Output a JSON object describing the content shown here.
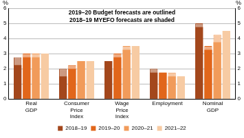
{
  "chart_data": {
    "type": "bar",
    "annotations": [
      "2019–20 Budget forecasts are outlined",
      "2018–19 MYEFO forecasts are shaded"
    ],
    "y_label": "%",
    "categories": [
      [
        "Real",
        "GDP"
      ],
      [
        "Consumer",
        "Price",
        "Index"
      ],
      [
        "Wage",
        "Price",
        "Index"
      ],
      [
        "Employment"
      ],
      [
        "Nominal",
        "GDP"
      ]
    ],
    "series": [
      {
        "name": "2018–19",
        "color": "#a3471c",
        "values": [
          2.25,
          1.5,
          2.5,
          1.75,
          4.75
        ],
        "myefo": [
          2.75,
          2.0,
          2.5,
          2.0,
          5.0
        ]
      },
      {
        "name": "2019–20",
        "color": "#e1661b",
        "values": [
          2.75,
          2.0,
          2.75,
          1.75,
          3.25
        ],
        "myefo": [
          3.0,
          2.25,
          3.0,
          1.75,
          3.5
        ]
      },
      {
        "name": "2020–21",
        "color": "#f19b5a",
        "values": [
          2.75,
          2.5,
          3.25,
          1.5,
          3.75
        ],
        "myefo": [
          3.0,
          2.5,
          3.5,
          1.75,
          4.25
        ]
      },
      {
        "name": "2021–22",
        "color": "#f7cba3",
        "values": [
          3.0,
          2.5,
          3.5,
          1.5,
          4.5
        ],
        "myefo": [
          3.0,
          2.5,
          3.5,
          1.5,
          4.5
        ]
      }
    ],
    "ylim": [
      0,
      6
    ],
    "yticks": [
      0,
      1,
      2,
      3,
      4,
      5,
      6
    ],
    "y2lim": [
      0,
      6
    ],
    "y2ticks": [
      0,
      1,
      2,
      3,
      4,
      5,
      6
    ],
    "grid": true,
    "legend": "bottom"
  }
}
